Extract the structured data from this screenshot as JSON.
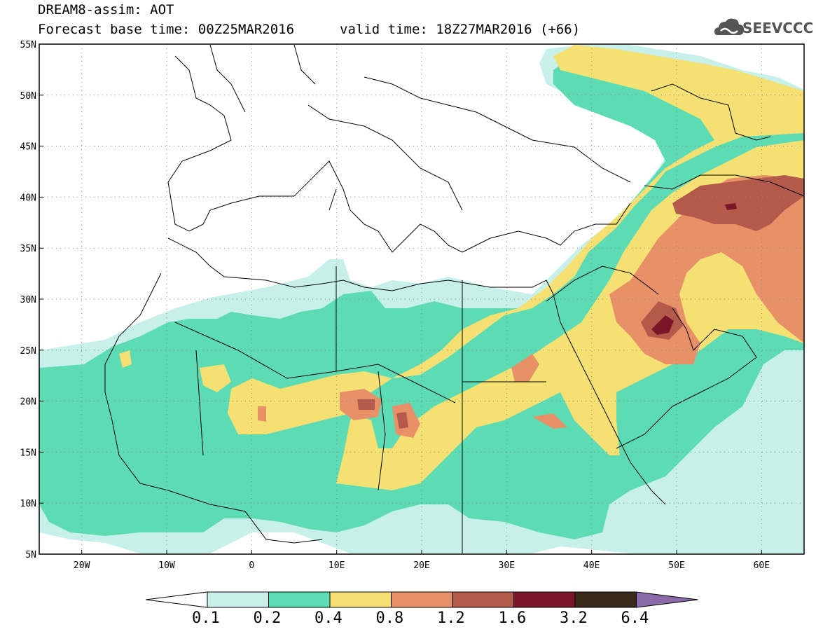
{
  "title": {
    "line1": "DREAM8-assim: AOT",
    "base_time": "Forecast base time: 00Z25MAR2016",
    "valid_time": "valid time: 18Z27MAR2016 (+66)"
  },
  "logo": {
    "text": "SEEVCCC",
    "icon": "cloud-icon"
  },
  "map": {
    "lat_labels": [
      "55N",
      "50N",
      "45N",
      "40N",
      "35N",
      "30N",
      "25N",
      "20N",
      "15N",
      "10N",
      "5N"
    ],
    "lon_labels": [
      "20W",
      "10W",
      "0",
      "10E",
      "20E",
      "30E",
      "40E",
      "50E",
      "60E"
    ],
    "lat_range": [
      5,
      55
    ],
    "lon_range": [
      -25,
      65
    ],
    "grid": true,
    "variable": "AOT"
  },
  "colorbar": {
    "levels": [
      "0.1",
      "0.2",
      "0.4",
      "0.8",
      "1.2",
      "1.6",
      "3.2",
      "6.4"
    ],
    "colors": [
      "#c8f0ea",
      "#5ddcb4",
      "#f5e074",
      "#e89068",
      "#b45a4a",
      "#7a1628",
      "#3a2818",
      "#8a6aa8"
    ],
    "under_color": "#ffffff",
    "over_color": "#8a6aa8"
  },
  "colors": {
    "c1": "#c8f0ea",
    "c2": "#5ddcb4",
    "c3": "#f5e074",
    "c4": "#e89068",
    "c5": "#b45a4a",
    "c6": "#7a1628"
  }
}
